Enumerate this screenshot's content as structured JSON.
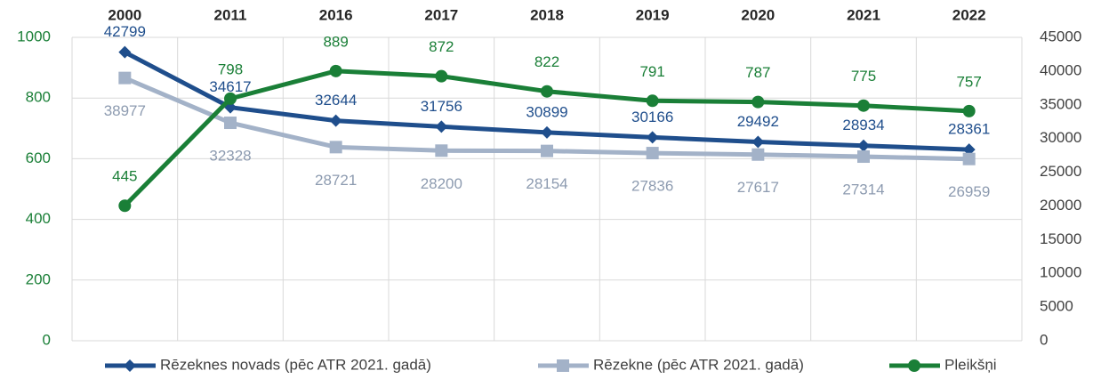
{
  "chart_data": {
    "type": "line",
    "categories": [
      "2000",
      "2011",
      "2016",
      "2017",
      "2018",
      "2019",
      "2020",
      "2021",
      "2022"
    ],
    "series": [
      {
        "name": "Rēzeknes novads (pēc ATR 2021. gadā)",
        "color": "#1f4e8c",
        "marker": "diamond",
        "axis": "y2",
        "values": [
          42799,
          34617,
          32644,
          31756,
          30899,
          30166,
          29492,
          28934,
          28361
        ]
      },
      {
        "name": "Rēzekne (pēc ATR 2021. gadā)",
        "color": "#a3b2c8",
        "marker": "square",
        "axis": "y2",
        "values": [
          38977,
          32328,
          28721,
          28200,
          28154,
          27836,
          27617,
          27314,
          26959
        ]
      },
      {
        "name": "Pleikšņi",
        "color": "#1a7f37",
        "marker": "circle",
        "axis": "y",
        "values": [
          445,
          798,
          889,
          872,
          822,
          791,
          787,
          775,
          757
        ]
      }
    ],
    "ylim": [
      0,
      1000
    ],
    "yticks": [
      0,
      200,
      400,
      600,
      800,
      1000
    ],
    "y2lim": [
      0,
      45000
    ],
    "y2ticks": [
      0,
      5000,
      10000,
      15000,
      20000,
      25000,
      30000,
      35000,
      40000,
      45000
    ],
    "grid": true,
    "legend": "bottom"
  }
}
